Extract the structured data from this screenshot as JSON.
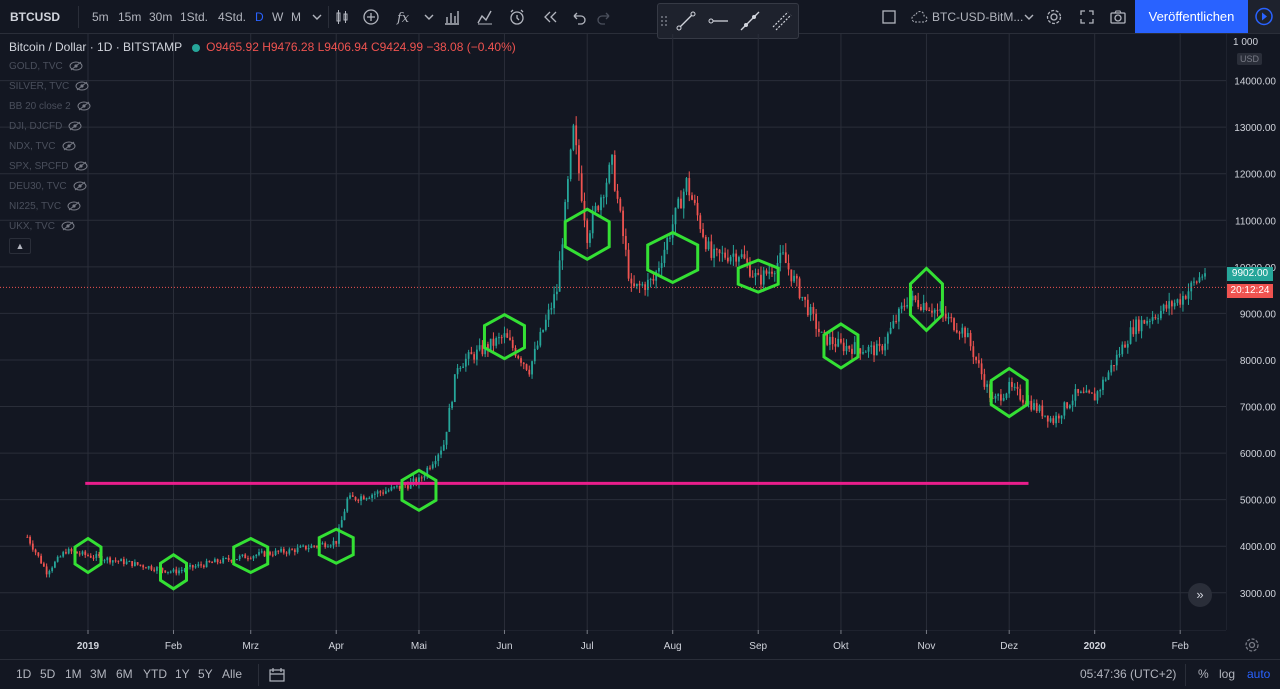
{
  "toolbar": {
    "symbol": "BTCUSD",
    "intervals": [
      "5m",
      "15m",
      "30m",
      "1Std.",
      "4Std.",
      "D",
      "W",
      "M"
    ],
    "active_interval": "D",
    "layout_name": "BTC-USD-BitM...",
    "publish_label": "Veröffentlichen"
  },
  "legend": {
    "title": "Bitcoin / Dollar · 1D · BITSTAMP",
    "ohlc": "O9465.92 H9476.28 L9406.94 C9424.99 −38.08 (−0.40%)"
  },
  "overlays": [
    {
      "label": "GOLD, TVC"
    },
    {
      "label": "SILVER, TVC"
    },
    {
      "label": "BB 20 close 2"
    },
    {
      "label": "DJI, DJCFD"
    },
    {
      "label": "NDX, TVC"
    },
    {
      "label": "SPX, SPCFD"
    },
    {
      "label": "DEU30, TVC"
    },
    {
      "label": "NI225, TVC"
    },
    {
      "label": "UKX, TVC"
    }
  ],
  "axis": {
    "currency": "USD",
    "top_label": "1 000",
    "current_price": "9902.00",
    "countdown": "20:12:24"
  },
  "bottom": {
    "ranges": [
      "1D",
      "5D",
      "1M",
      "3M",
      "6M",
      "YTD",
      "1Y",
      "5Y",
      "Alle"
    ],
    "time": "05:47:36 (UTC+2)",
    "percent": "%",
    "log": "log",
    "auto": "auto"
  },
  "colors": {
    "background": "#131722",
    "up": "#26a69a",
    "down": "#ef5350",
    "hexagon": "#34e034",
    "hline": "#e91e8c",
    "accent": "#2962ff"
  },
  "chart_data": {
    "type": "candlestick",
    "title": "Bitcoin / Dollar",
    "x_tick_labels": [
      "2019",
      "Feb",
      "Mrz",
      "Apr",
      "Mai",
      "Jun",
      "Jul",
      "Aug",
      "Sep",
      "Okt",
      "Nov",
      "Dez",
      "2020",
      "Feb"
    ],
    "y_ticks": [
      3000,
      4000,
      5000,
      6000,
      7000,
      8000,
      9000,
      10000,
      11000,
      12000,
      13000,
      14000
    ],
    "y_tick_labels": [
      "3000.00",
      "4000.00",
      "5000.00",
      "6000.00",
      "7000.00",
      "8000.00",
      "9000.00",
      "10000.00",
      "11000.00",
      "12000.00",
      "13000.00",
      "14000.00"
    ],
    "ylim": [
      2200,
      15000
    ],
    "horizontal_line": 5350,
    "current_price": 9902,
    "approx_path": [
      {
        "date": "2018-12-10",
        "price": 4200
      },
      {
        "date": "2018-12-17",
        "price": 3450
      },
      {
        "date": "2018-12-24",
        "price": 3900
      },
      {
        "date": "2019-01-01",
        "price": 3800
      },
      {
        "date": "2019-01-15",
        "price": 3650
      },
      {
        "date": "2019-02-01",
        "price": 3450
      },
      {
        "date": "2019-02-15",
        "price": 3650
      },
      {
        "date": "2019-03-01",
        "price": 3800
      },
      {
        "date": "2019-03-15",
        "price": 3900
      },
      {
        "date": "2019-04-01",
        "price": 4100
      },
      {
        "date": "2019-04-05",
        "price": 5000
      },
      {
        "date": "2019-04-20",
        "price": 5200
      },
      {
        "date": "2019-05-01",
        "price": 5400
      },
      {
        "date": "2019-05-10",
        "price": 6200
      },
      {
        "date": "2019-05-15",
        "price": 7900
      },
      {
        "date": "2019-06-01",
        "price": 8500
      },
      {
        "date": "2019-06-10",
        "price": 7800
      },
      {
        "date": "2019-06-20",
        "price": 9500
      },
      {
        "date": "2019-06-26",
        "price": 12900
      },
      {
        "date": "2019-07-01",
        "price": 10700
      },
      {
        "date": "2019-07-10",
        "price": 12200
      },
      {
        "date": "2019-07-17",
        "price": 9500
      },
      {
        "date": "2019-07-25",
        "price": 9700
      },
      {
        "date": "2019-08-06",
        "price": 11800
      },
      {
        "date": "2019-08-15",
        "price": 10200
      },
      {
        "date": "2019-08-25",
        "price": 10300
      },
      {
        "date": "2019-09-01",
        "price": 9700
      },
      {
        "date": "2019-09-10",
        "price": 10200
      },
      {
        "date": "2019-09-24",
        "price": 8500
      },
      {
        "date": "2019-10-01",
        "price": 8300
      },
      {
        "date": "2019-10-15",
        "price": 8200
      },
      {
        "date": "2019-10-25",
        "price": 9300
      },
      {
        "date": "2019-11-01",
        "price": 9200
      },
      {
        "date": "2019-11-15",
        "price": 8600
      },
      {
        "date": "2019-11-25",
        "price": 7100
      },
      {
        "date": "2019-12-01",
        "price": 7400
      },
      {
        "date": "2019-12-17",
        "price": 6700
      },
      {
        "date": "2019-12-25",
        "price": 7250
      },
      {
        "date": "2020-01-01",
        "price": 7200
      },
      {
        "date": "2020-01-15",
        "price": 8700
      },
      {
        "date": "2020-02-01",
        "price": 9300
      },
      {
        "date": "2020-02-10",
        "price": 9900
      }
    ],
    "hexagon_markers": [
      {
        "date": "2019-01-01",
        "price": 3800
      },
      {
        "date": "2019-02-01",
        "price": 3450
      },
      {
        "date": "2019-03-01",
        "price": 3800
      },
      {
        "date": "2019-04-01",
        "price": 4000
      },
      {
        "date": "2019-05-01",
        "price": 5200
      },
      {
        "date": "2019-06-01",
        "price": 8500
      },
      {
        "date": "2019-07-01",
        "price": 10700
      },
      {
        "date": "2019-08-01",
        "price": 10200
      },
      {
        "date": "2019-09-01",
        "price": 9800
      },
      {
        "date": "2019-10-01",
        "price": 8300
      },
      {
        "date": "2019-11-01",
        "price": 9300
      },
      {
        "date": "2019-12-01",
        "price": 7300
      }
    ]
  }
}
